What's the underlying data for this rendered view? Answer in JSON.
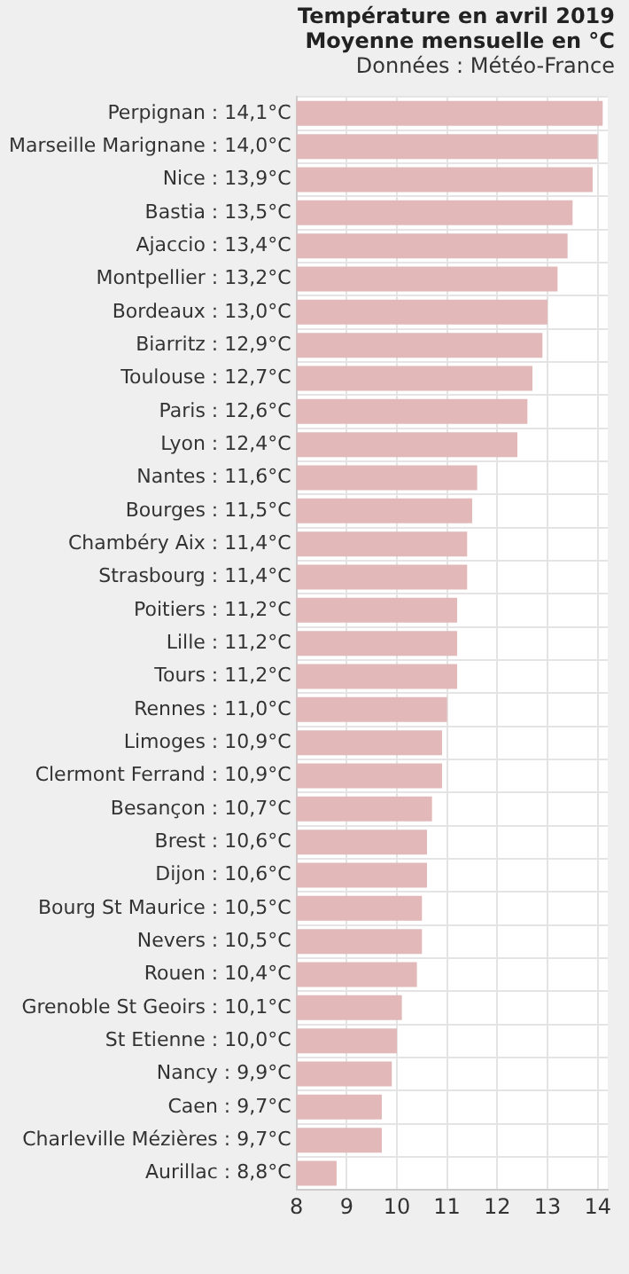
{
  "chart_data": {
    "type": "bar",
    "orientation": "horizontal",
    "title": "Température en avril 2019",
    "subtitle": "Moyenne mensuelle en °C",
    "annotations": [
      "Données : Météo-France"
    ],
    "categories": [
      "Perpignan : 14,1°C",
      "Marseille Marignane : 14,0°C",
      "Nice : 13,9°C",
      "Bastia : 13,5°C",
      "Ajaccio : 13,4°C",
      "Montpellier : 13,2°C",
      "Bordeaux : 13,0°C",
      "Biarritz : 12,9°C",
      "Toulouse : 12,7°C",
      "Paris : 12,6°C",
      "Lyon : 12,4°C",
      "Nantes : 11,6°C",
      "Bourges : 11,5°C",
      "Chambéry Aix : 11,4°C",
      "Strasbourg : 11,4°C",
      "Poitiers : 11,2°C",
      "Lille : 11,2°C",
      "Tours : 11,2°C",
      "Rennes : 11,0°C",
      "Limoges : 10,9°C",
      "Clermont Ferrand : 10,9°C",
      "Besançon : 10,7°C",
      "Brest : 10,6°C",
      "Dijon : 10,6°C",
      "Bourg St Maurice : 10,5°C",
      "Nevers : 10,5°C",
      "Rouen : 10,4°C",
      "Grenoble St Geoirs : 10,1°C",
      "St Etienne : 10,0°C",
      "Nancy : 9,9°C",
      "Caen : 9,7°C",
      "Charleville Mézières : 9,7°C",
      "Aurillac : 8,8°C"
    ],
    "values": [
      14.1,
      14.0,
      13.9,
      13.5,
      13.4,
      13.2,
      13.0,
      12.9,
      12.7,
      12.6,
      12.4,
      11.6,
      11.5,
      11.4,
      11.4,
      11.2,
      11.2,
      11.2,
      11.0,
      10.9,
      10.9,
      10.7,
      10.6,
      10.6,
      10.5,
      10.5,
      10.4,
      10.1,
      10.0,
      9.9,
      9.7,
      9.7,
      8.8
    ],
    "color": "#e2b8b8",
    "xlim": [
      8,
      14.2
    ],
    "xticks": [
      8,
      9,
      10,
      11,
      12,
      13,
      14
    ],
    "grid": true,
    "legend": false
  }
}
